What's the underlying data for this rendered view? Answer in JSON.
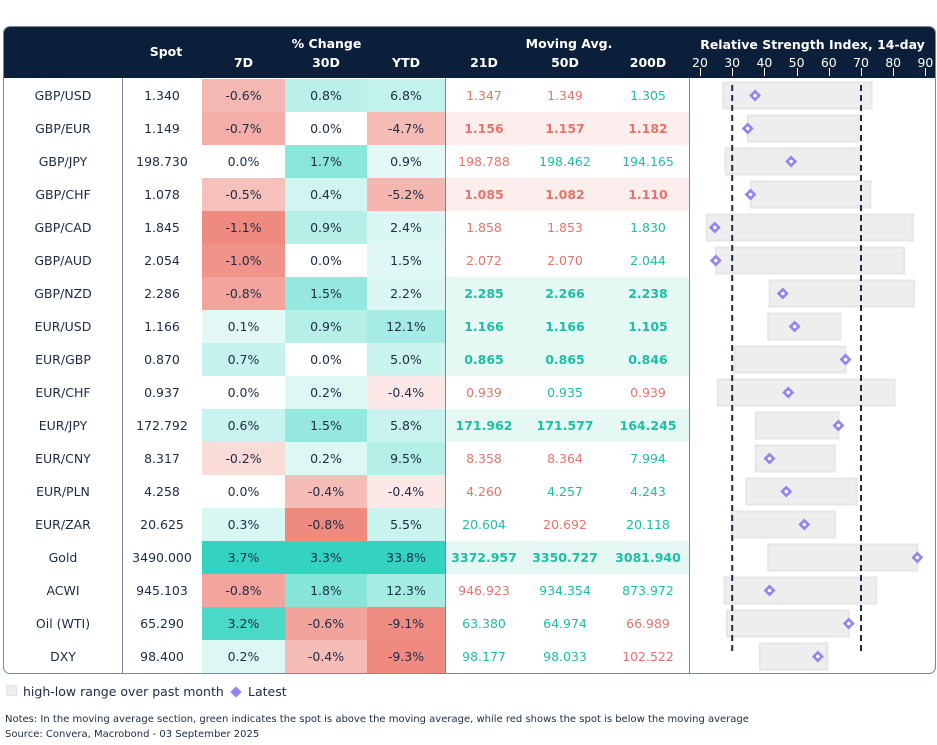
{
  "header": {
    "spot": "Spot",
    "pct_change": "% Change",
    "moving_avg": "Moving Avg.",
    "rsi_title": "Relative Strength Index, 14-day",
    "cols": [
      "7D",
      "30D",
      "YTD",
      "21D",
      "50D",
      "200D"
    ]
  },
  "colors": {
    "neg_text": "#e8736b",
    "pos_text": "#1bbfa3",
    "neg_full": "#ef8a80",
    "pos_full": "#33d3c0",
    "neg_highlight_bg": "#fbeeed",
    "pos_highlight_bg": "#e6f8f4",
    "header_bg": "#0b1f3a",
    "range_bar": "#eeeeee",
    "diamond": "#9185f0"
  },
  "chart_data": {
    "type": "table",
    "rsi_axis": {
      "range": [
        20,
        90
      ],
      "ticks": [
        "20",
        "30",
        "40",
        "50",
        "60",
        "70",
        "80",
        "90"
      ],
      "reference_lines": [
        30,
        70
      ]
    },
    "rows": [
      {
        "name": "GBP/USD",
        "spot": "1.340",
        "d7": "-0.6%",
        "d30": "0.8%",
        "ytd": "6.8%",
        "ma21": "1.347",
        "ma50": "1.349",
        "ma200": "1.305",
        "rsi_low": 27.2,
        "rsi_high": 73.3,
        "rsi": 37.1
      },
      {
        "name": "GBP/EUR",
        "spot": "1.149",
        "d7": "-0.7%",
        "d30": "0.0%",
        "ytd": "-4.7%",
        "ma21": "1.156",
        "ma50": "1.157",
        "ma200": "1.182",
        "rsi_low": 34.9,
        "rsi_high": 69.3,
        "rsi": 34.8
      },
      {
        "name": "GBP/JPY",
        "spot": "198.730",
        "d7": "0.0%",
        "d30": "1.7%",
        "ytd": "0.9%",
        "ma21": "198.788",
        "ma50": "198.462",
        "ma200": "194.165",
        "rsi_low": 27.9,
        "rsi_high": 69.6,
        "rsi": 48.3
      },
      {
        "name": "GBP/CHF",
        "spot": "1.078",
        "d7": "-0.5%",
        "d30": "0.4%",
        "ytd": "-5.2%",
        "ma21": "1.085",
        "ma50": "1.082",
        "ma200": "1.110",
        "rsi_low": 35.8,
        "rsi_high": 72.9,
        "rsi": 35.7
      },
      {
        "name": "GBP/CAD",
        "spot": "1.845",
        "d7": "-1.1%",
        "d30": "0.9%",
        "ytd": "2.4%",
        "ma21": "1.858",
        "ma50": "1.853",
        "ma200": "1.830",
        "rsi_low": 22.1,
        "rsi_high": 86.1,
        "rsi": 24.6
      },
      {
        "name": "GBP/AUD",
        "spot": "2.054",
        "d7": "-1.0%",
        "d30": "0.0%",
        "ytd": "1.5%",
        "ma21": "2.072",
        "ma50": "2.070",
        "ma200": "2.044",
        "rsi_low": 25.0,
        "rsi_high": 83.4,
        "rsi": 24.9
      },
      {
        "name": "GBP/NZD",
        "spot": "2.286",
        "d7": "-0.8%",
        "d30": "1.5%",
        "ytd": "2.2%",
        "ma21": "2.285",
        "ma50": "2.266",
        "ma200": "2.238",
        "rsi_low": 41.6,
        "rsi_high": 86.5,
        "rsi": 45.7
      },
      {
        "name": "EUR/USD",
        "spot": "1.166",
        "d7": "0.1%",
        "d30": "0.9%",
        "ytd": "12.1%",
        "ma21": "1.166",
        "ma50": "1.166",
        "ma200": "1.105",
        "rsi_low": 41.2,
        "rsi_high": 63.6,
        "rsi": 49.4
      },
      {
        "name": "EUR/GBP",
        "spot": "0.870",
        "d7": "0.7%",
        "d30": "0.0%",
        "ytd": "5.0%",
        "ma21": "0.865",
        "ma50": "0.865",
        "ma200": "0.846",
        "rsi_low": 30.8,
        "rsi_high": 65.2,
        "rsi": 65.2
      },
      {
        "name": "EUR/CHF",
        "spot": "0.937",
        "d7": "0.0%",
        "d30": "0.2%",
        "ytd": "-0.4%",
        "ma21": "0.939",
        "ma50": "0.935",
        "ma200": "0.939",
        "rsi_low": 25.5,
        "rsi_high": 80.4,
        "rsi": 47.4
      },
      {
        "name": "EUR/JPY",
        "spot": "172.792",
        "d7": "0.6%",
        "d30": "1.5%",
        "ytd": "5.8%",
        "ma21": "171.962",
        "ma50": "171.577",
        "ma200": "164.245",
        "rsi_low": 37.4,
        "rsi_high": 63.0,
        "rsi": 63.0
      },
      {
        "name": "EUR/CNY",
        "spot": "8.317",
        "d7": "-0.2%",
        "d30": "0.2%",
        "ytd": "9.5%",
        "ma21": "8.358",
        "ma50": "8.364",
        "ma200": "7.994",
        "rsi_low": 37.3,
        "rsi_high": 61.8,
        "rsi": 41.6
      },
      {
        "name": "EUR/PLN",
        "spot": "4.258",
        "d7": "0.0%",
        "d30": "-0.4%",
        "ytd": "-0.4%",
        "ma21": "4.260",
        "ma50": "4.257",
        "ma200": "4.243",
        "rsi_low": 34.4,
        "rsi_high": 68.7,
        "rsi": 46.8
      },
      {
        "name": "EUR/ZAR",
        "spot": "20.625",
        "d7": "0.3%",
        "d30": "-0.8%",
        "ytd": "5.5%",
        "ma21": "20.604",
        "ma50": "20.692",
        "ma200": "20.118",
        "rsi_low": 29.8,
        "rsi_high": 61.9,
        "rsi": 52.4
      },
      {
        "name": "Gold",
        "spot": "3490.000",
        "d7": "3.7%",
        "d30": "3.3%",
        "ytd": "33.8%",
        "ma21": "3372.957",
        "ma50": "3350.727",
        "ma200": "3081.940",
        "rsi_low": 41.2,
        "rsi_high": 87.5,
        "rsi": 87.5
      },
      {
        "name": "ACWI",
        "spot": "945.103",
        "d7": "-0.8%",
        "d30": "1.8%",
        "ytd": "12.3%",
        "ma21": "946.923",
        "ma50": "934.354",
        "ma200": "873.972",
        "rsi_low": 27.6,
        "rsi_high": 74.8,
        "rsi": 41.6
      },
      {
        "name": "Oil (WTI)",
        "spot": "65.290",
        "d7": "3.2%",
        "d30": "-0.6%",
        "ytd": "-9.1%",
        "ma21": "63.380",
        "ma50": "64.974",
        "ma200": "66.989",
        "rsi_low": 28.4,
        "rsi_high": 66.2,
        "rsi": 66.2
      },
      {
        "name": "DXY",
        "spot": "98.400",
        "d7": "0.2%",
        "d30": "-0.4%",
        "ytd": "-9.3%",
        "ma21": "98.177",
        "ma50": "98.033",
        "ma200": "102.522",
        "rsi_low": 38.6,
        "rsi_high": 59.6,
        "rsi": 56.6
      }
    ]
  },
  "legend": {
    "range": "high-low range over past month",
    "latest": "Latest"
  },
  "notes": {
    "note": "Notes: In the moving average section, green indicates the spot is above the moving average, while red shows the spot is below the moving average",
    "source": "Source: Convera, Macrobond - 03 September 2025"
  }
}
